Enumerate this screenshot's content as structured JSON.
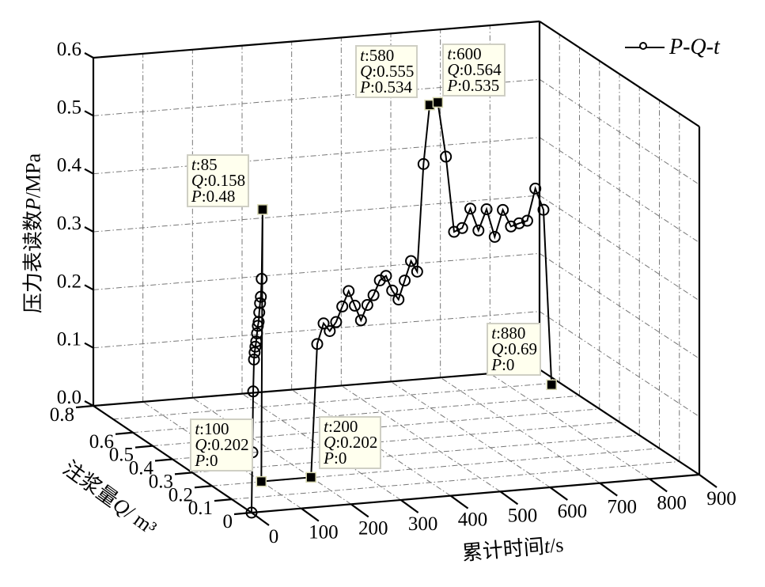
{
  "chart_data": {
    "type": "line",
    "projection": "3d",
    "title": "",
    "xlabel": {
      "prefix": "累计时间",
      "var": "t",
      "suffix": "/s"
    },
    "ylabel": {
      "prefix": "注浆量",
      "var": "Q",
      "suffix": "/ m³"
    },
    "zlabel": {
      "prefix": "压力表读数",
      "var": "P",
      "suffix": "/MPa"
    },
    "xlim": [
      0,
      900
    ],
    "ylim": [
      0,
      0.8
    ],
    "zlim": [
      0,
      0.6
    ],
    "x_ticks": [
      "0",
      "100",
      "200",
      "300",
      "400",
      "500",
      "600",
      "700",
      "800",
      "900"
    ],
    "x_tick_values": [
      0,
      100,
      200,
      300,
      400,
      500,
      600,
      700,
      800,
      900
    ],
    "y_ticks": [
      "0",
      "0.1",
      "0.2",
      "0.3",
      "0.4",
      "0.5",
      "0.6",
      "0.8"
    ],
    "y_tick_values": [
      0,
      0.1,
      0.2,
      0.3,
      0.4,
      0.5,
      0.6,
      0.8
    ],
    "z_ticks": [
      "0.0",
      "0.1",
      "0.2",
      "0.3",
      "0.4",
      "0.5",
      "0.6"
    ],
    "z_tick_values": [
      0,
      0.1,
      0.2,
      0.3,
      0.4,
      0.5,
      0.6
    ],
    "grid": true,
    "legend": {
      "position": "top-right",
      "entries": [
        {
          "name": "P-Q-t",
          "marker": "open-circle"
        }
      ]
    },
    "series": [
      {
        "name": "P-Q-t",
        "color": "#000000",
        "points": [
          [
            0,
            0,
            0
          ],
          [
            6,
            0.011,
            0.101
          ],
          [
            12,
            0.022,
            0.203
          ],
          [
            18,
            0.033,
            0.255
          ],
          [
            24,
            0.045,
            0.264
          ],
          [
            30,
            0.056,
            0.271
          ],
          [
            36,
            0.067,
            0.277
          ],
          [
            42,
            0.078,
            0.288
          ],
          [
            48,
            0.089,
            0.298
          ],
          [
            54,
            0.1,
            0.302
          ],
          [
            60,
            0.112,
            0.315
          ],
          [
            66,
            0.123,
            0.328
          ],
          [
            72,
            0.134,
            0.336
          ],
          [
            78,
            0.145,
            0.364
          ],
          [
            85,
            0.158,
            0.48
          ],
          [
            100,
            0.202,
            0
          ],
          [
            200,
            0.202,
            0
          ],
          [
            220,
            0.221,
            0.224
          ],
          [
            240,
            0.239,
            0.254
          ],
          [
            260,
            0.258,
            0.235
          ],
          [
            280,
            0.276,
            0.245
          ],
          [
            300,
            0.295,
            0.266
          ],
          [
            320,
            0.313,
            0.287
          ],
          [
            340,
            0.332,
            0.256
          ],
          [
            360,
            0.351,
            0.225
          ],
          [
            380,
            0.369,
            0.246
          ],
          [
            400,
            0.388,
            0.257
          ],
          [
            420,
            0.406,
            0.277
          ],
          [
            440,
            0.425,
            0.279
          ],
          [
            460,
            0.444,
            0.248
          ],
          [
            480,
            0.462,
            0.227
          ],
          [
            500,
            0.481,
            0.254
          ],
          [
            520,
            0.499,
            0.282
          ],
          [
            540,
            0.518,
            0.258
          ],
          [
            560,
            0.536,
            0.438
          ],
          [
            580,
            0.555,
            0.534
          ],
          [
            600,
            0.564,
            0.535
          ],
          [
            620,
            0.573,
            0.438
          ],
          [
            640,
            0.582,
            0.305
          ],
          [
            660,
            0.591,
            0.308
          ],
          [
            680,
            0.6,
            0.338
          ],
          [
            700,
            0.609,
            0.297
          ],
          [
            720,
            0.618,
            0.33
          ],
          [
            740,
            0.627,
            0.279
          ],
          [
            760,
            0.636,
            0.322
          ],
          [
            780,
            0.645,
            0.29
          ],
          [
            800,
            0.654,
            0.292
          ],
          [
            820,
            0.663,
            0.293
          ],
          [
            840,
            0.672,
            0.345
          ],
          [
            860,
            0.681,
            0.305
          ],
          [
            880,
            0.69,
            0
          ]
        ]
      }
    ],
    "annotations": [
      {
        "t": "85",
        "Q": "0.158",
        "P": "0.48"
      },
      {
        "t": "580",
        "Q": "0.555",
        "P": "0.534"
      },
      {
        "t": "600",
        "Q": "0.564",
        "P": "0.535"
      },
      {
        "t": "880",
        "Q": "0.69",
        "P": "0"
      },
      {
        "t": "100",
        "Q": "0.202",
        "P": "0"
      },
      {
        "t": "200",
        "Q": "0.202",
        "P": "0"
      }
    ],
    "annotation_vars": {
      "t": "t",
      "Q": "Q",
      "P": "P"
    },
    "colors": {
      "tip_bg": "#ffffee",
      "tip_border": "#cfcfc4",
      "grid": "#777777",
      "axis": "#000000"
    }
  }
}
